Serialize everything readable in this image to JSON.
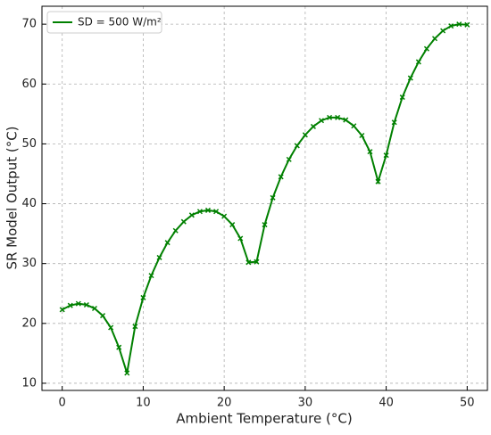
{
  "chart_data": {
    "type": "line",
    "xlabel": "Ambient Temperature (°C)",
    "ylabel": "SR Model Output (°C)",
    "x": [
      0,
      1,
      2,
      3,
      4,
      5,
      6,
      7,
      8,
      9,
      10,
      11,
      12,
      13,
      14,
      15,
      16,
      17,
      18,
      19,
      20,
      21,
      22,
      23,
      24,
      25,
      26,
      27,
      28,
      29,
      30,
      31,
      32,
      33,
      34,
      35,
      36,
      37,
      38,
      39,
      40,
      41,
      42,
      43,
      44,
      45,
      46,
      47,
      48,
      49,
      50
    ],
    "series": [
      {
        "name": "SD = 500 W/m²",
        "color": "#008000",
        "values": [
          22.3,
          23.0,
          23.3,
          23.1,
          22.5,
          21.3,
          19.3,
          16.0,
          11.7,
          19.5,
          24.3,
          28.0,
          31.0,
          33.5,
          35.5,
          37.0,
          38.1,
          38.7,
          38.9,
          38.7,
          37.9,
          36.5,
          34.2,
          30.2,
          30.3,
          36.5,
          41.0,
          44.5,
          47.4,
          49.7,
          51.5,
          52.9,
          53.9,
          54.4,
          54.4,
          54.0,
          53.0,
          51.4,
          48.7,
          43.7,
          48.1,
          53.6,
          57.8,
          61.0,
          63.7,
          65.9,
          67.6,
          68.9,
          69.7,
          70.0,
          69.9
        ]
      }
    ],
    "xlim": [
      -2.5,
      52.5
    ],
    "ylim": [
      8.8,
      73
    ],
    "xticks": [
      0,
      10,
      20,
      30,
      40,
      50
    ],
    "yticks": [
      10,
      20,
      30,
      40,
      50,
      60,
      70
    ],
    "grid": true,
    "legend": "upper left"
  }
}
